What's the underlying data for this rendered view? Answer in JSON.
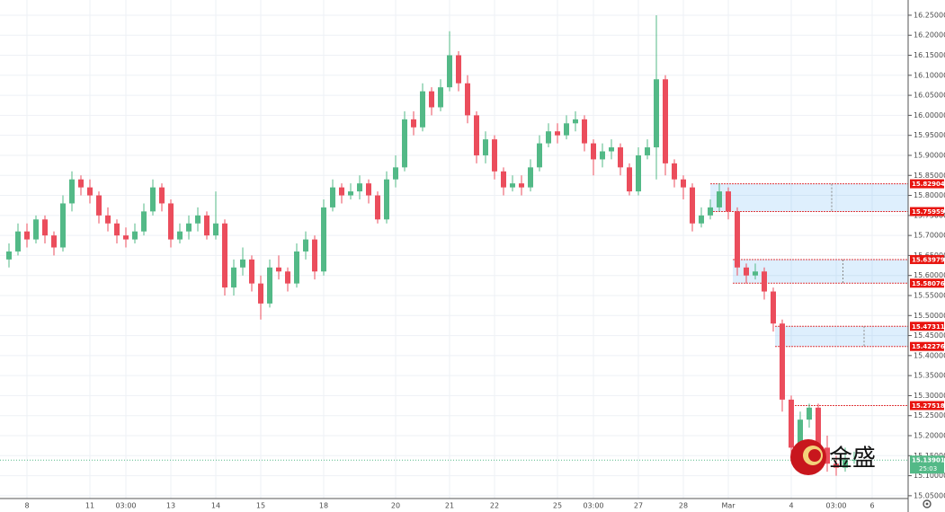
{
  "chart_data": {
    "type": "candlestick",
    "categories": [
      null,
      null,
      "8",
      null,
      null,
      null,
      null,
      null,
      null,
      "11",
      null,
      null,
      null,
      "03:00",
      null,
      null,
      null,
      null,
      "13",
      null,
      null,
      null,
      null,
      "14",
      null,
      null,
      null,
      null,
      "15",
      null,
      null,
      null,
      null,
      null,
      null,
      "18",
      null,
      null,
      null,
      null,
      null,
      null,
      null,
      "20",
      null,
      null,
      null,
      null,
      null,
      "21",
      null,
      null,
      null,
      null,
      "22",
      null,
      null,
      null,
      null,
      null,
      null,
      "25",
      null,
      null,
      null,
      "03:00",
      null,
      null,
      null,
      null,
      "27",
      null,
      null,
      null,
      null,
      "28",
      null,
      null,
      null,
      null,
      "Mar",
      null,
      null,
      null,
      null,
      null,
      null,
      "4",
      null,
      null,
      null,
      null,
      "03:00",
      null,
      null,
      null,
      "6",
      null,
      null,
      null
    ],
    "open": [
      15.64,
      15.66,
      15.71,
      15.69,
      15.74,
      15.7,
      15.67,
      15.78,
      15.84,
      15.82,
      15.8,
      15.75,
      15.73,
      15.7,
      15.69,
      15.71,
      15.76,
      15.82,
      15.78,
      15.69,
      15.71,
      15.73,
      15.75,
      15.7,
      15.73,
      15.57,
      15.62,
      15.64,
      15.58,
      15.53,
      15.62,
      15.61,
      15.58,
      15.66,
      15.69,
      15.61,
      15.77,
      15.82,
      15.8,
      15.81,
      15.83,
      15.8,
      15.74,
      15.84,
      15.87,
      15.99,
      15.97,
      16.06,
      16.02,
      16.07,
      16.15,
      16.08,
      16.0,
      15.9,
      15.94,
      15.86,
      15.82,
      15.83,
      15.82,
      15.87,
      15.93,
      15.96,
      15.95,
      15.98,
      15.99,
      15.93,
      15.89,
      15.91,
      15.92,
      15.87,
      15.81,
      15.9,
      15.92,
      16.09,
      15.88,
      15.84,
      15.82,
      15.73,
      15.75,
      15.77,
      15.81,
      15.76,
      15.62,
      15.6,
      15.61,
      15.56,
      15.48,
      15.29,
      15.17,
      15.24,
      15.27,
      15.17,
      15.13,
      15.12,
      15.14,
      null,
      null,
      null,
      null,
      null
    ],
    "high": [
      15.68,
      15.73,
      15.73,
      15.75,
      15.75,
      15.71,
      15.8,
      15.86,
      15.85,
      15.84,
      15.81,
      15.77,
      15.74,
      15.72,
      15.73,
      15.78,
      15.84,
      15.83,
      15.79,
      15.73,
      15.75,
      15.77,
      15.76,
      15.81,
      15.74,
      15.64,
      15.67,
      15.65,
      15.6,
      15.64,
      15.65,
      15.62,
      15.68,
      15.71,
      15.7,
      15.79,
      15.84,
      15.83,
      15.83,
      15.85,
      15.84,
      15.81,
      15.86,
      15.9,
      16.01,
      16.01,
      16.08,
      16.07,
      16.09,
      16.21,
      16.16,
      16.1,
      16.01,
      15.96,
      15.95,
      15.87,
      15.85,
      15.85,
      15.89,
      15.95,
      15.98,
      15.98,
      16.0,
      16.01,
      16.0,
      15.94,
      15.93,
      15.94,
      15.93,
      15.88,
      15.92,
      15.94,
      16.25,
      16.1,
      15.89,
      15.85,
      15.83,
      15.77,
      15.79,
      15.83,
      15.82,
      15.77,
      15.63,
      15.63,
      15.62,
      15.57,
      15.49,
      15.3,
      15.26,
      15.28,
      15.28,
      15.2,
      15.15,
      15.17,
      15.16,
      null,
      null,
      null,
      null,
      null
    ],
    "low": [
      15.62,
      15.65,
      15.67,
      15.68,
      15.68,
      15.65,
      15.66,
      15.76,
      15.8,
      15.78,
      15.73,
      15.71,
      15.68,
      15.67,
      15.68,
      15.7,
      15.75,
      15.76,
      15.67,
      15.68,
      15.69,
      15.71,
      15.69,
      15.69,
      15.55,
      15.55,
      15.6,
      15.56,
      15.49,
      15.52,
      15.59,
      15.56,
      15.57,
      15.64,
      15.59,
      15.6,
      15.76,
      15.78,
      15.79,
      15.79,
      15.78,
      15.73,
      15.73,
      15.82,
      15.86,
      15.95,
      15.96,
      16.0,
      16.01,
      16.06,
      16.06,
      15.98,
      15.88,
      15.88,
      15.84,
      15.8,
      15.81,
      15.8,
      15.81,
      15.86,
      15.92,
      15.93,
      15.94,
      15.96,
      15.91,
      15.85,
      15.87,
      15.89,
      15.85,
      15.8,
      15.8,
      15.89,
      15.84,
      15.85,
      15.82,
      15.79,
      15.71,
      15.72,
      15.74,
      15.76,
      15.74,
      15.6,
      15.58,
      15.59,
      15.54,
      15.46,
      15.26,
      15.14,
      15.16,
      15.22,
      15.15,
      15.11,
      15.1,
      15.11,
      15.13,
      null,
      null,
      null,
      null,
      null
    ],
    "close": [
      15.66,
      15.71,
      15.69,
      15.74,
      15.7,
      15.67,
      15.78,
      15.84,
      15.82,
      15.8,
      15.75,
      15.73,
      15.7,
      15.69,
      15.71,
      15.76,
      15.82,
      15.78,
      15.69,
      15.71,
      15.73,
      15.75,
      15.7,
      15.73,
      15.57,
      15.62,
      15.64,
      15.58,
      15.53,
      15.62,
      15.61,
      15.58,
      15.66,
      15.69,
      15.61,
      15.77,
      15.82,
      15.8,
      15.81,
      15.83,
      15.8,
      15.74,
      15.84,
      15.87,
      15.99,
      15.97,
      16.06,
      16.02,
      16.07,
      16.15,
      16.08,
      16.0,
      15.9,
      15.94,
      15.86,
      15.82,
      15.83,
      15.82,
      15.87,
      15.93,
      15.96,
      15.95,
      15.98,
      15.99,
      15.93,
      15.89,
      15.91,
      15.92,
      15.87,
      15.81,
      15.9,
      15.92,
      16.09,
      15.88,
      15.84,
      15.82,
      15.73,
      15.75,
      15.77,
      15.81,
      15.76,
      15.62,
      15.6,
      15.61,
      15.56,
      15.48,
      15.29,
      15.17,
      15.24,
      15.27,
      15.17,
      15.13,
      15.12,
      15.14,
      15.14,
      null,
      null,
      null,
      null,
      null
    ],
    "up_color": "#53b987",
    "down_color": "#eb4d5c",
    "ylim": [
      15.043,
      16.288
    ],
    "yticks": [
      {
        "value": 15.05,
        "label": "15.05000"
      },
      {
        "value": 15.1,
        "label": "15.10000"
      },
      {
        "value": 15.15,
        "label": "15.15000"
      },
      {
        "value": 15.2,
        "label": "15.20000"
      },
      {
        "value": 15.25,
        "label": "15.25000"
      },
      {
        "value": 15.3,
        "label": "15.30000"
      },
      {
        "value": 15.35,
        "label": "15.35000"
      },
      {
        "value": 15.4,
        "label": "15.40000"
      },
      {
        "value": 15.45,
        "label": "15.45000"
      },
      {
        "value": 15.5,
        "label": "15.50000"
      },
      {
        "value": 15.55,
        "label": "15.55000"
      },
      {
        "value": 15.6,
        "label": "15.60000"
      },
      {
        "value": 15.65,
        "label": "15.65000"
      },
      {
        "value": 15.7,
        "label": "15.70000"
      },
      {
        "value": 15.75,
        "label": "15.75000"
      },
      {
        "value": 15.8,
        "label": "15.80000"
      },
      {
        "value": 15.85,
        "label": "15.85000"
      },
      {
        "value": 15.9,
        "label": "15.90000"
      },
      {
        "value": 15.95,
        "label": "15.95000"
      },
      {
        "value": 16.0,
        "label": "16.00000"
      },
      {
        "value": 16.05,
        "label": "16.05000"
      },
      {
        "value": 16.1,
        "label": "16.10000"
      },
      {
        "value": 16.15,
        "label": "16.15000"
      },
      {
        "value": 16.2,
        "label": "16.20000"
      },
      {
        "value": 16.25,
        "label": "16.25000"
      }
    ],
    "grid": true,
    "zones": [
      {
        "high": 15.82904,
        "low": 15.75959
      },
      {
        "high": 15.63979,
        "low": 15.58076
      },
      {
        "high": 15.47311,
        "low": 15.42276
      }
    ],
    "lines": [
      15.27518
    ],
    "last_price": 15.13901,
    "countdown": "25:03",
    "watermark": "金盛"
  }
}
